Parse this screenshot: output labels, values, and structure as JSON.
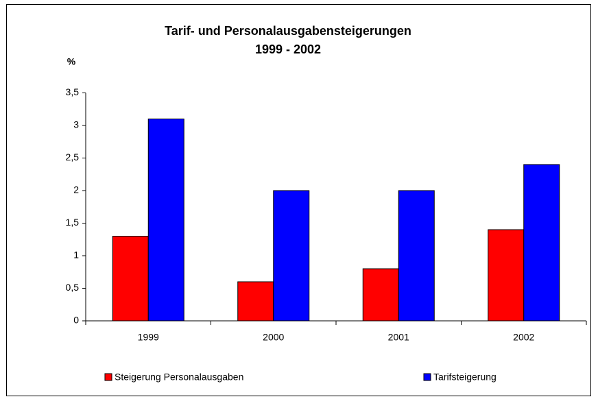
{
  "chart_data": {
    "type": "bar",
    "title": "Tarif- und Personalausgabensteigerungen",
    "subtitle": "1999 - 2002",
    "y_label": "%",
    "categories": [
      "1999",
      "2000",
      "2001",
      "2002"
    ],
    "series": [
      {
        "name": "Steigerung Personalausgaben",
        "color": "#ff0000",
        "values": [
          1.3,
          0.6,
          0.8,
          1.4
        ]
      },
      {
        "name": "Tarifsteigerung",
        "color": "#0000ff",
        "values": [
          3.1,
          2.0,
          2.0,
          2.4
        ]
      }
    ],
    "ylim": [
      0,
      3.5
    ],
    "yticks": [
      0,
      {
        "value": 0.5,
        "label": "0,5"
      },
      1,
      {
        "value": 1.5,
        "label": "1,5"
      },
      2,
      {
        "value": 2.5,
        "label": "2,5"
      },
      3,
      {
        "value": 3.5,
        "label": "3,5"
      }
    ],
    "grid": false,
    "legend": "bottom"
  }
}
